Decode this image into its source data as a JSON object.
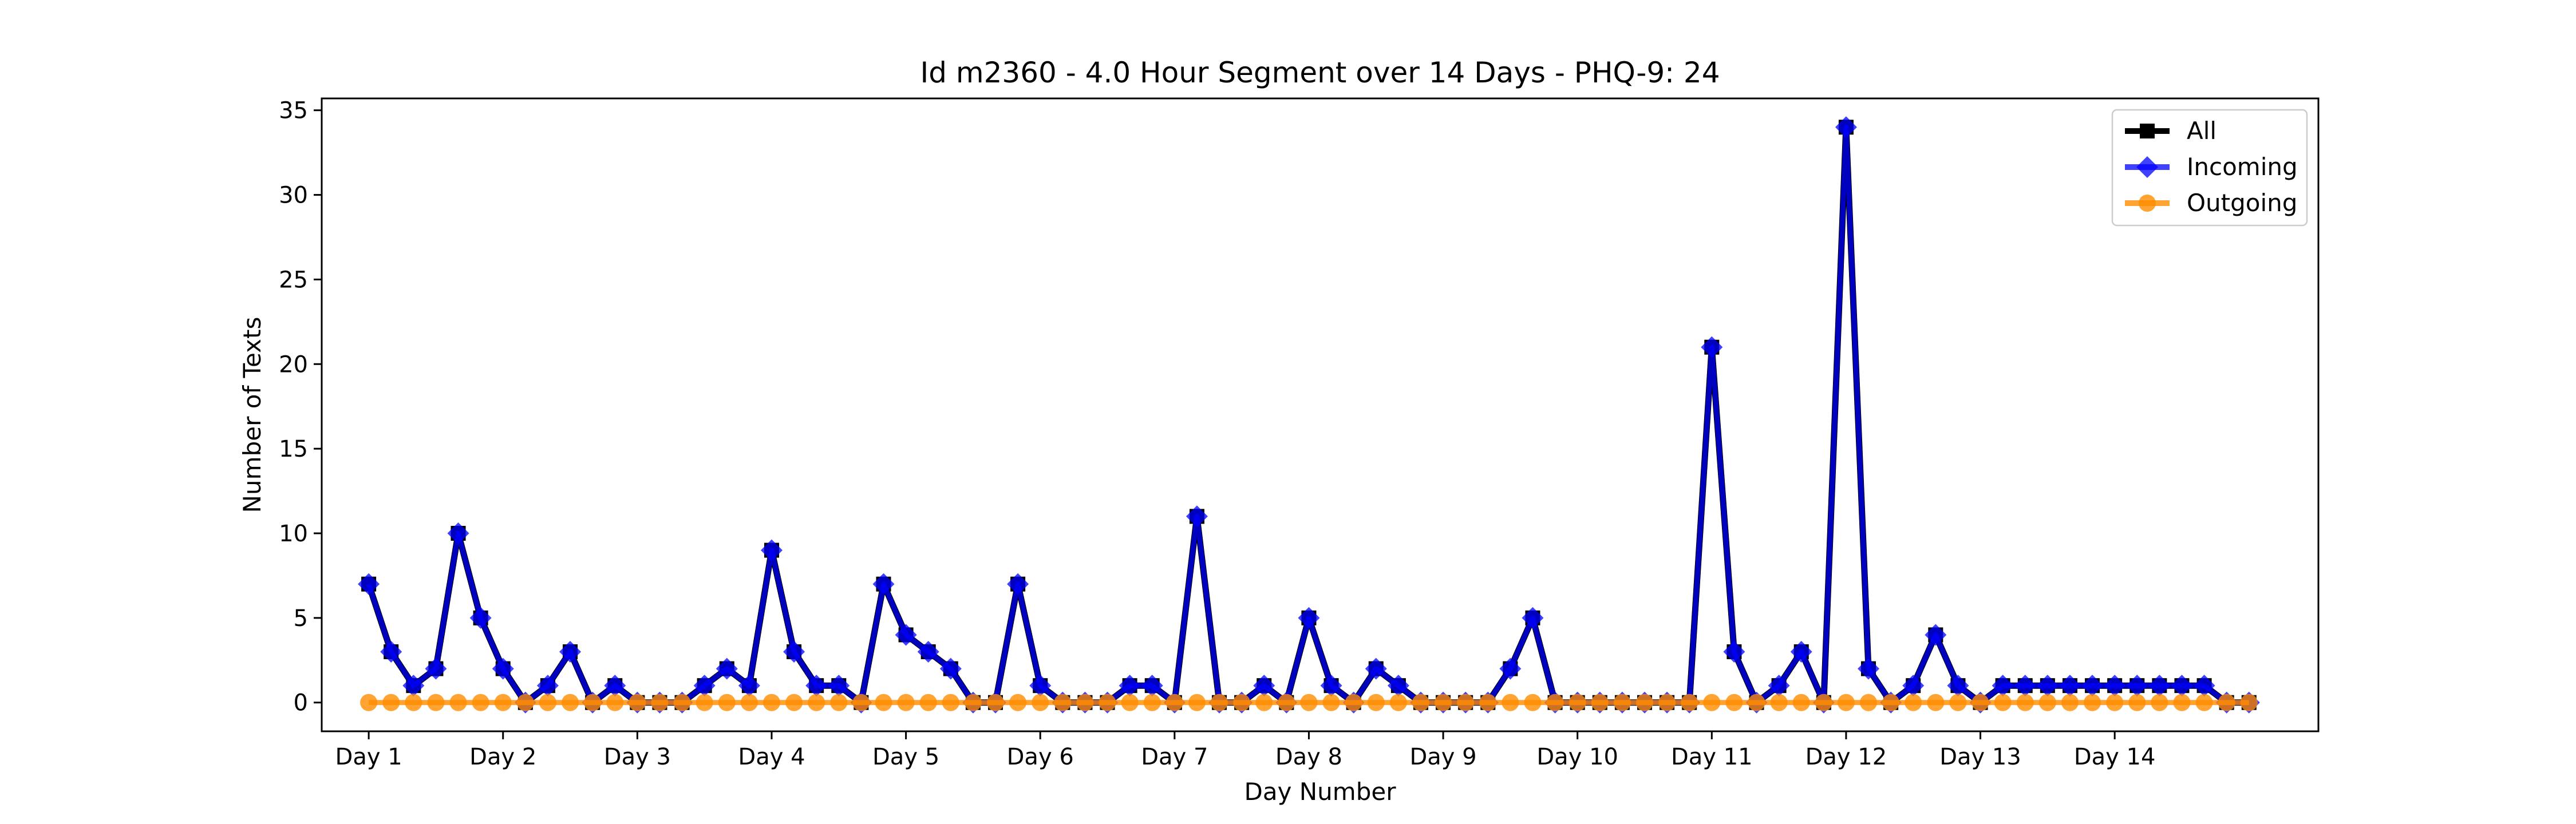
{
  "chart_data": {
    "type": "line",
    "title": "Id m2360 - 4.0 Hour Segment over 14 Days - PHQ-9: 24",
    "xlabel": "Day Number",
    "ylabel": "Number of Texts",
    "ylim": [
      -1.7,
      35.7
    ],
    "xlim": [
      -2.1,
      87.1
    ],
    "yticks": [
      0,
      5,
      10,
      15,
      20,
      25,
      30,
      35
    ],
    "xtick_positions": [
      0,
      6,
      12,
      18,
      24,
      30,
      36,
      42,
      48,
      54,
      60,
      66,
      72,
      78
    ],
    "xtick_labels": [
      "Day 1",
      "Day 2",
      "Day 3",
      "Day 4",
      "Day 5",
      "Day 6",
      "Day 7",
      "Day 8",
      "Day 9",
      "Day 10",
      "Day 11",
      "Day 12",
      "Day 13",
      "Day 14"
    ],
    "grid": false,
    "legend_position": "top-right",
    "series": [
      {
        "name": "All",
        "color": "#000000",
        "marker": "square",
        "values": [
          7,
          3,
          1,
          2,
          10,
          5,
          2,
          0,
          1,
          3,
          0,
          1,
          0,
          0,
          0,
          1,
          2,
          1,
          9,
          3,
          1,
          1,
          0,
          7,
          4,
          3,
          2,
          0,
          0,
          7,
          1,
          0,
          0,
          0,
          1,
          1,
          0,
          11,
          0,
          0,
          1,
          0,
          5,
          1,
          0,
          2,
          1,
          0,
          0,
          0,
          0,
          2,
          5,
          0,
          0,
          0,
          0,
          0,
          0,
          0,
          21,
          3,
          0,
          1,
          3,
          0,
          34,
          2,
          0,
          1,
          4,
          1,
          0,
          1,
          1,
          1,
          1,
          1,
          1,
          1,
          1,
          1,
          1,
          0,
          0
        ]
      },
      {
        "name": "Incoming",
        "color": "#0000ff",
        "marker": "diamond",
        "values": [
          7,
          3,
          1,
          2,
          10,
          5,
          2,
          0,
          1,
          3,
          0,
          1,
          0,
          0,
          0,
          1,
          2,
          1,
          9,
          3,
          1,
          1,
          0,
          7,
          4,
          3,
          2,
          0,
          0,
          7,
          1,
          0,
          0,
          0,
          1,
          1,
          0,
          11,
          0,
          0,
          1,
          0,
          5,
          1,
          0,
          2,
          1,
          0,
          0,
          0,
          0,
          2,
          5,
          0,
          0,
          0,
          0,
          0,
          0,
          0,
          21,
          3,
          0,
          1,
          3,
          0,
          34,
          2,
          0,
          1,
          4,
          1,
          0,
          1,
          1,
          1,
          1,
          1,
          1,
          1,
          1,
          1,
          1,
          0,
          0
        ]
      },
      {
        "name": "Outgoing",
        "color": "#ff8c00",
        "marker": "circle",
        "values": [
          0,
          0,
          0,
          0,
          0,
          0,
          0,
          0,
          0,
          0,
          0,
          0,
          0,
          0,
          0,
          0,
          0,
          0,
          0,
          0,
          0,
          0,
          0,
          0,
          0,
          0,
          0,
          0,
          0,
          0,
          0,
          0,
          0,
          0,
          0,
          0,
          0,
          0,
          0,
          0,
          0,
          0,
          0,
          0,
          0,
          0,
          0,
          0,
          0,
          0,
          0,
          0,
          0,
          0,
          0,
          0,
          0,
          0,
          0,
          0,
          0,
          0,
          0,
          0,
          0,
          0,
          0,
          0,
          0,
          0,
          0,
          0,
          0,
          0,
          0,
          0,
          0,
          0,
          0,
          0,
          0,
          0,
          0,
          0,
          0
        ]
      }
    ]
  }
}
